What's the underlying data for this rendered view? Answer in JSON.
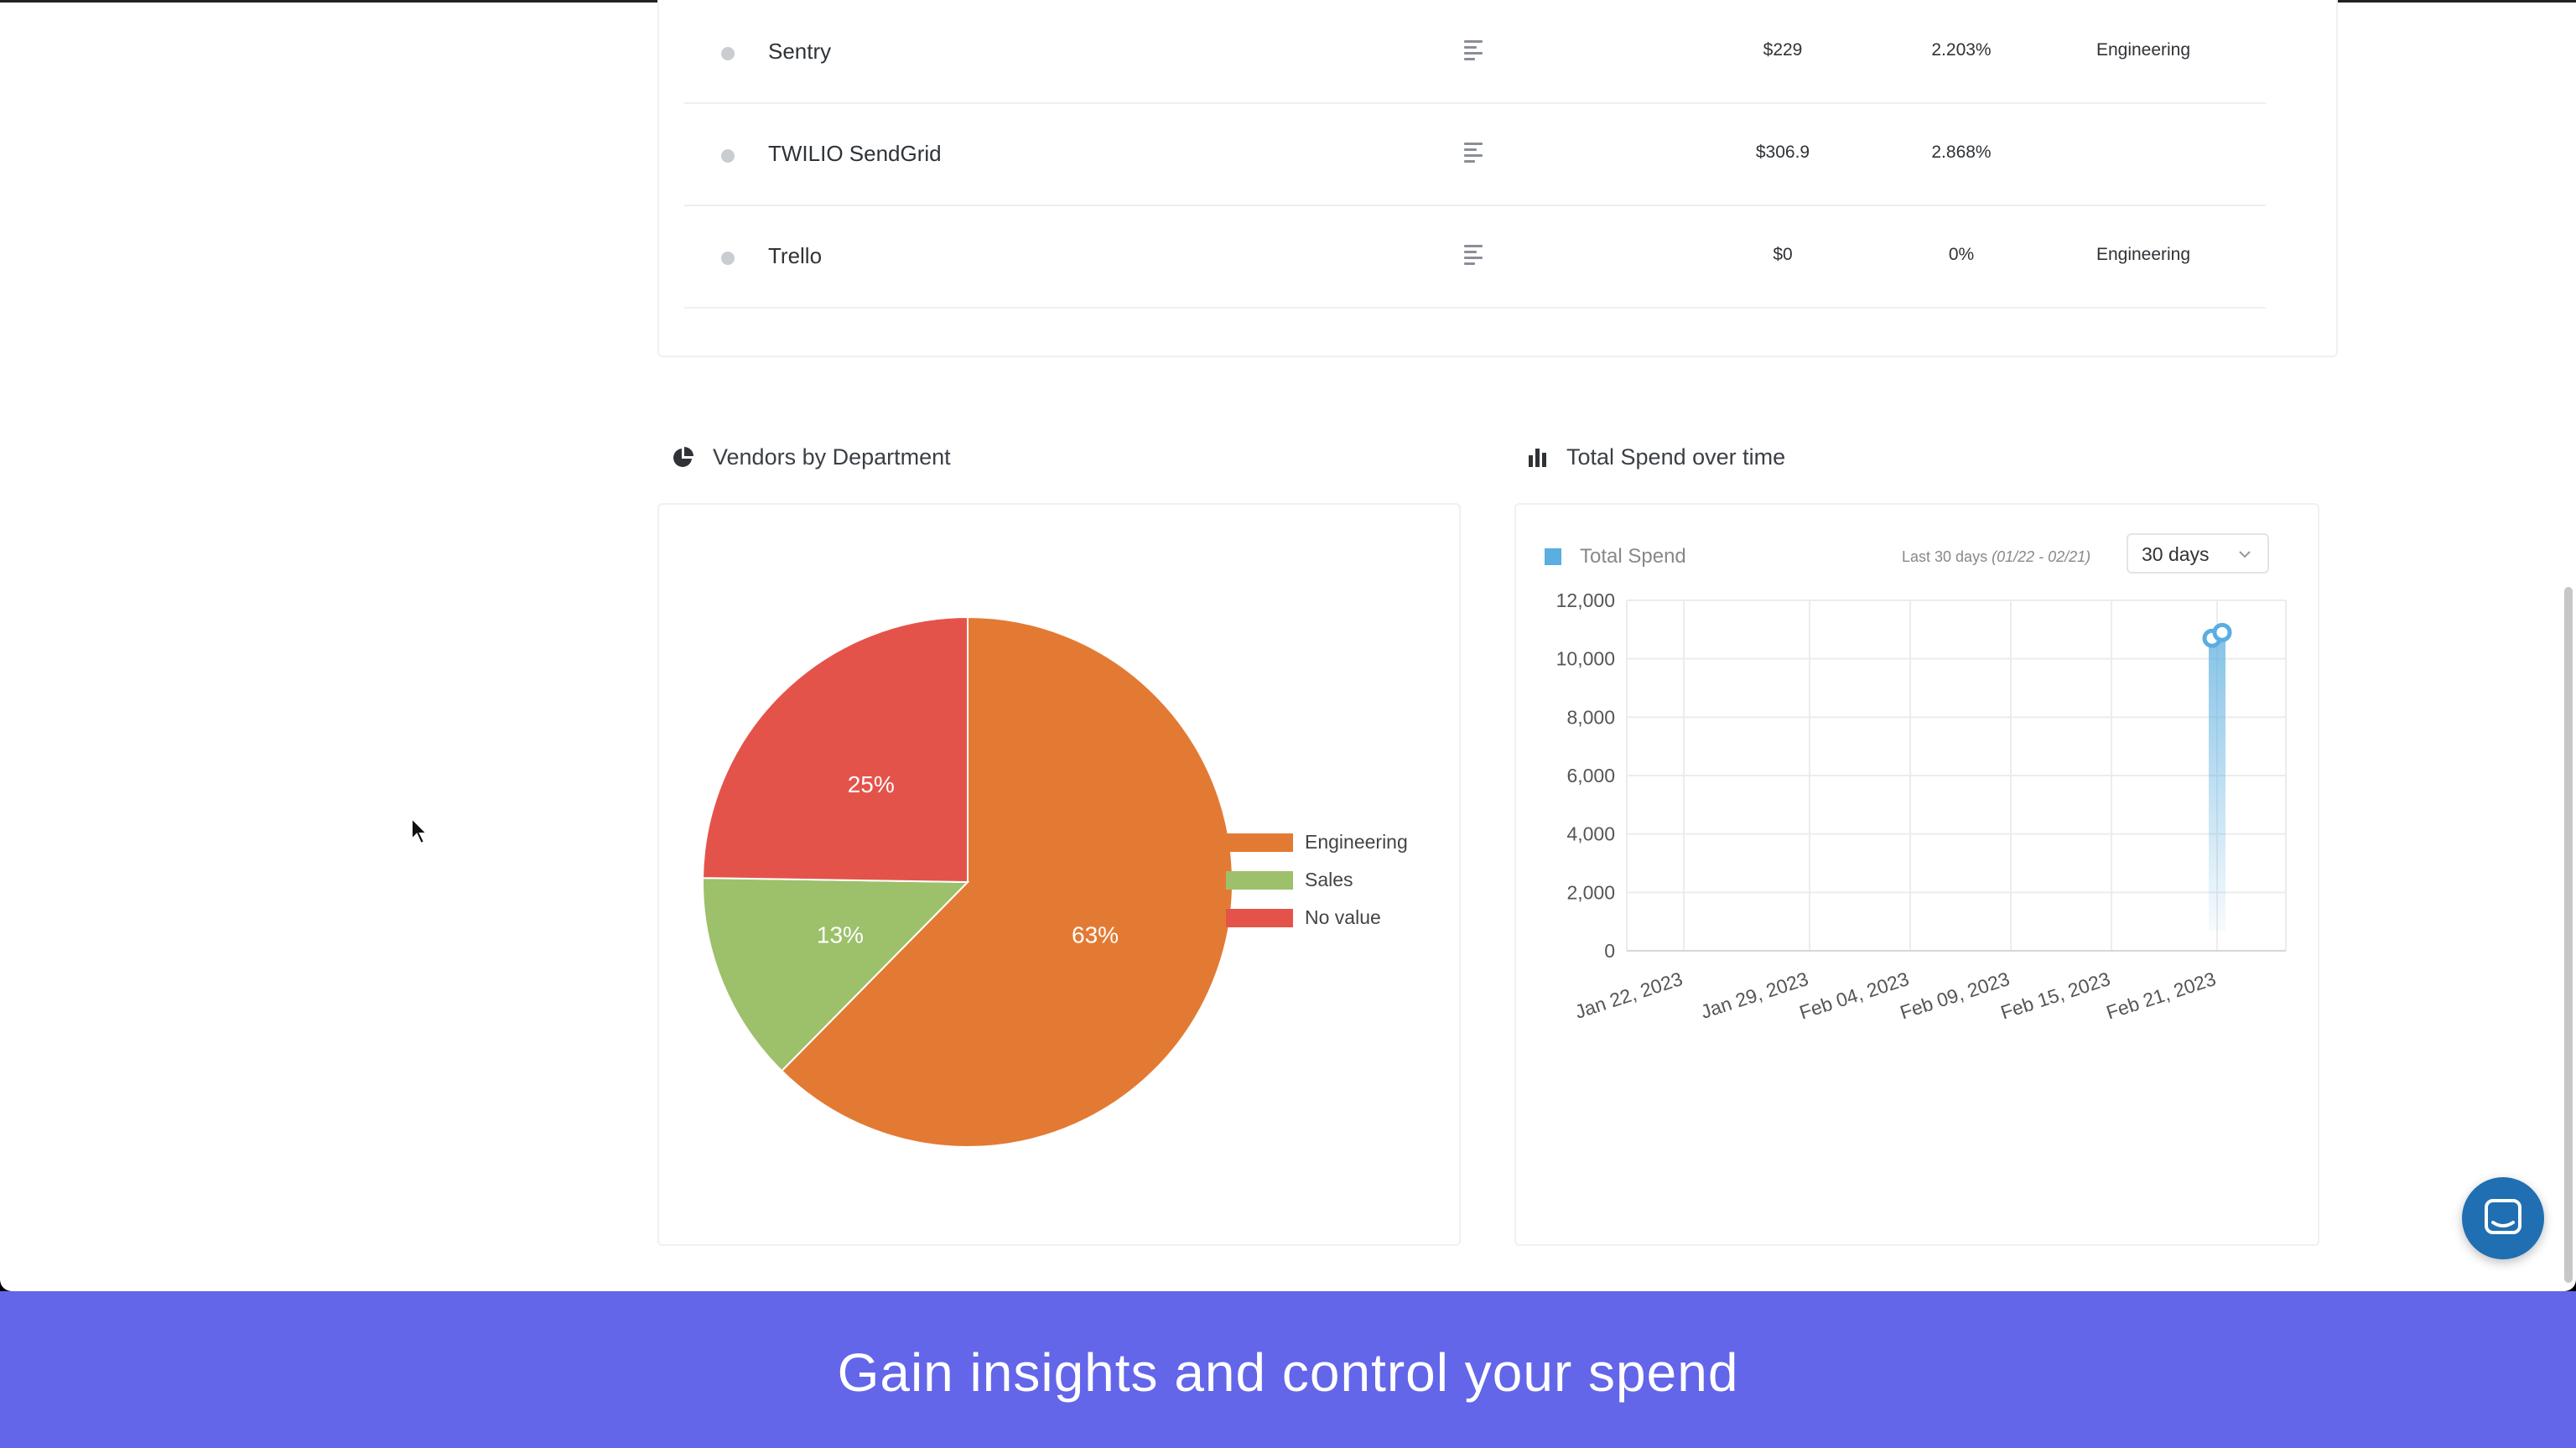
{
  "vendors_table": {
    "rows": [
      {
        "name": "Sentry",
        "amount": "$229",
        "percent": "2.203%",
        "department": "Engineering"
      },
      {
        "name": "TWILIO SendGrid",
        "amount": "$306.9",
        "percent": "2.868%",
        "department": ""
      },
      {
        "name": "Trello",
        "amount": "$0",
        "percent": "0%",
        "department": "Engineering"
      }
    ]
  },
  "vendors_by_department": {
    "title": "Vendors by Department",
    "icon": "pie-chart-icon"
  },
  "total_spend": {
    "title": "Total Spend over time",
    "icon": "bar-chart-icon",
    "range_label_prefix": "Last 30 days",
    "range_label_dates": "(01/22 - 02/21)",
    "select_value": "30 days"
  },
  "banner": {
    "text": "Gain insights and control your spend"
  },
  "colors": {
    "engineering": "#e37a33",
    "sales": "#9dc06b",
    "no_value": "#e4534a",
    "total_spend": "#5aaee0",
    "banner": "#6366e8"
  },
  "chart_data": [
    {
      "type": "pie",
      "title": "Vendors by Department",
      "slices": [
        {
          "label": "Engineering",
          "value": 63,
          "display": "63%"
        },
        {
          "label": "Sales",
          "value": 13,
          "display": "13%"
        },
        {
          "label": "No value",
          "value": 25,
          "display": "25%"
        }
      ],
      "legend": "right"
    },
    {
      "type": "line",
      "title": "Total Spend over time",
      "series": [
        {
          "name": "Total Spend",
          "values": [
            10700,
            10900
          ]
        }
      ],
      "x": [
        "Feb 20, 2023",
        "Feb 21, 2023"
      ],
      "x_ticks": [
        "Jan 22, 2023",
        "Jan 29, 2023",
        "Feb 04, 2023",
        "Feb 09, 2023",
        "Feb 15, 2023",
        "Feb 21, 2023"
      ],
      "y_ticks": [
        "12,000",
        "10,000",
        "8,000",
        "6,000",
        "4,000",
        "2,000",
        "0"
      ],
      "ylim": [
        0,
        12000
      ],
      "grid": true,
      "legend": "top-left"
    }
  ]
}
